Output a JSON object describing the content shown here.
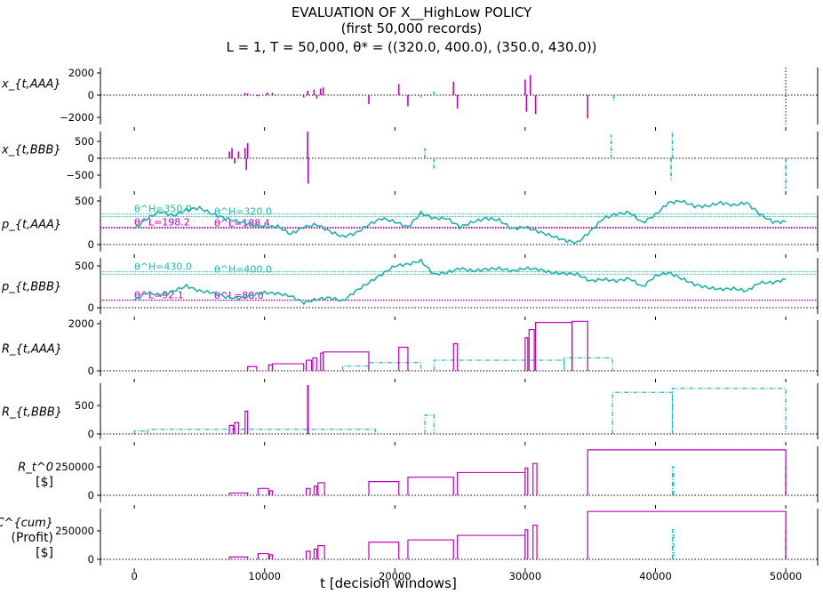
{
  "chart_data": {
    "type": "line",
    "title": [
      "EVALUATION OF X__HighLow POLICY",
      "(first 50,000 records)",
      "L = 1, T = 50,000, θ* = ((320.0, 400.0), (350.0, 430.0))"
    ],
    "xlabel": "t [decision windows]",
    "xlim": [
      -2600,
      52450
    ],
    "xticks": [
      0,
      10000,
      20000,
      30000,
      40000,
      50000
    ],
    "xtick_labels": [
      "0",
      "10000",
      "20000",
      "30000",
      "40000",
      "50000"
    ],
    "colors": {
      "magenta": "#c000c0",
      "cyan": "#20b8b0",
      "line": "#20b2aa"
    },
    "panels": [
      {
        "ylabel": "x_{t,AAA}",
        "ylim": [
          -2640,
          2480
        ],
        "yticks": [
          2000,
          0,
          -2000
        ],
        "ytick_labels": [
          "2000",
          "0",
          "−2000"
        ],
        "kind": "spikes",
        "magenta": [
          [
            8500,
            200
          ],
          [
            8700,
            150
          ],
          [
            9500,
            -100
          ],
          [
            10200,
            250
          ],
          [
            10600,
            200
          ],
          [
            13000,
            -200
          ],
          [
            13300,
            400
          ],
          [
            13800,
            500
          ],
          [
            14000,
            -300
          ],
          [
            14300,
            600
          ],
          [
            14500,
            700
          ],
          [
            18000,
            -800
          ],
          [
            20300,
            1000
          ],
          [
            21000,
            -1000
          ],
          [
            24500,
            1200
          ],
          [
            24800,
            -1200
          ],
          [
            30000,
            1400
          ],
          [
            30100,
            -1500
          ],
          [
            30400,
            1800
          ],
          [
            30800,
            -1700
          ],
          [
            34800,
            -2100
          ]
        ],
        "cyan": [
          [
            22000,
            -200
          ],
          [
            23000,
            400
          ],
          [
            36800,
            -600
          ]
        ]
      },
      {
        "ylabel": "x_{t,BBB}",
        "ylim": [
          -895,
          790
        ],
        "yticks": [
          500,
          0,
          -500
        ],
        "ytick_labels": [
          "500",
          "0",
          "−500"
        ],
        "kind": "spikes",
        "magenta": [
          [
            7300,
            200
          ],
          [
            7500,
            300
          ],
          [
            7700,
            -150
          ],
          [
            8000,
            200
          ],
          [
            8500,
            300
          ],
          [
            8600,
            -350
          ],
          [
            8700,
            450
          ],
          [
            13300,
            900
          ],
          [
            13350,
            -750
          ]
        ],
        "cyan": [
          [
            22300,
            300
          ],
          [
            23000,
            -300
          ],
          [
            36600,
            700
          ],
          [
            41200,
            -650
          ],
          [
            41300,
            800
          ],
          [
            50000,
            -900
          ]
        ]
      },
      {
        "ylabel": "p_{t,AAA}",
        "ylim": [
          -82,
          561
        ],
        "yticks": [
          500,
          0
        ],
        "ytick_labels": [
          "500",
          "0"
        ],
        "kind": "price",
        "values": [
          180,
          300,
          380,
          330,
          400,
          420,
          350,
          300,
          260,
          230,
          200,
          210,
          120,
          200,
          230,
          150,
          90,
          130,
          230,
          300,
          260,
          200,
          360,
          300,
          300,
          200,
          260,
          300,
          280,
          180,
          200,
          150,
          100,
          50,
          20,
          150,
          300,
          350,
          370,
          250,
          340,
          480,
          500,
          440,
          440,
          480,
          450,
          480,
          350,
          260,
          260
        ],
        "thresholds": [
          {
            "label": "θ^H=350.0",
            "value": 350,
            "color": "cyan"
          },
          {
            "label": "θ^H=320.0",
            "value": 320,
            "color": "cyan"
          },
          {
            "label": "θ^L=198.2",
            "value": 198,
            "color": "magenta"
          },
          {
            "label": "θ^L=188.4",
            "value": 188,
            "color": "magenta"
          }
        ]
      },
      {
        "ylabel": "p_{t,BBB}",
        "ylim": [
          -74,
          596
        ],
        "yticks": [
          500,
          0
        ],
        "ytick_labels": [
          "500",
          "0"
        ],
        "kind": "price",
        "values": [
          90,
          180,
          150,
          200,
          260,
          200,
          180,
          130,
          110,
          150,
          180,
          170,
          140,
          60,
          100,
          120,
          80,
          200,
          300,
          400,
          500,
          520,
          560,
          400,
          420,
          470,
          440,
          460,
          470,
          440,
          470,
          460,
          420,
          410,
          400,
          320,
          340,
          320,
          350,
          250,
          380,
          420,
          350,
          280,
          240,
          220,
          230,
          200,
          300,
          300,
          340
        ],
        "thresholds": [
          {
            "label": "θ^H=430.0",
            "value": 430,
            "color": "cyan"
          },
          {
            "label": "θ^H=400.0",
            "value": 400,
            "color": "cyan"
          },
          {
            "label": "θ^L=92.1",
            "value": 92,
            "color": "magenta"
          },
          {
            "label": "θ^L=88.0",
            "value": 88,
            "color": "magenta"
          }
        ]
      },
      {
        "ylabel": "R_{t,AAA}",
        "ylim": [
          -226,
          2150
        ],
        "yticks": [
          2000,
          0
        ],
        "ytick_labels": [
          "2000",
          "0"
        ],
        "kind": "pulses",
        "magenta": [
          [
            8700,
            9400,
            180
          ],
          [
            10300,
            10600,
            250
          ],
          [
            10600,
            13000,
            300
          ],
          [
            13200,
            13600,
            450
          ],
          [
            13700,
            14000,
            550
          ],
          [
            14300,
            14500,
            750
          ],
          [
            14500,
            18000,
            800
          ],
          [
            20300,
            21000,
            1000
          ],
          [
            24500,
            24800,
            1150
          ],
          [
            30000,
            30200,
            1400
          ],
          [
            30300,
            30700,
            1750
          ],
          [
            30800,
            33600,
            2050
          ],
          [
            33600,
            34800,
            2100
          ]
        ],
        "cyan": [
          [
            16000,
            18000,
            200
          ],
          [
            18000,
            22000,
            350
          ],
          [
            23000,
            33000,
            450
          ],
          [
            33000,
            36700,
            550
          ]
        ]
      },
      {
        "ylabel": "R_{t,BBB}",
        "ylim": [
          -94,
          890
        ],
        "yticks": [
          500,
          0
        ],
        "ytick_labels": [
          "500",
          "0"
        ],
        "kind": "pulses",
        "magenta": [
          [
            7300,
            7600,
            150
          ],
          [
            7700,
            8000,
            200
          ],
          [
            8500,
            8700,
            400
          ],
          [
            13300,
            13350,
            850
          ]
        ],
        "cyan": [
          [
            0,
            1000,
            50
          ],
          [
            1000,
            18500,
            80
          ],
          [
            22300,
            23000,
            330
          ],
          [
            36700,
            41300,
            730
          ],
          [
            41300,
            50000,
            800
          ]
        ]
      },
      {
        "ylabel": "R_t^0",
        "ylabel2": "[$]",
        "ylim": [
          -62500,
          430000
        ],
        "yticks": [
          250000,
          0
        ],
        "ytick_labels": [
          "250000",
          "0"
        ],
        "kind": "pulses",
        "magenta": [
          [
            7300,
            8700,
            20000
          ],
          [
            9500,
            10300,
            60000
          ],
          [
            10400,
            10600,
            40000
          ],
          [
            13200,
            13500,
            60000
          ],
          [
            13800,
            14000,
            80000
          ],
          [
            14100,
            14600,
            110000
          ],
          [
            18000,
            20300,
            120000
          ],
          [
            21000,
            24500,
            160000
          ],
          [
            24800,
            30000,
            200000
          ],
          [
            30000,
            30200,
            240000
          ],
          [
            30600,
            30900,
            280000
          ],
          [
            34800,
            50000,
            400000
          ]
        ],
        "cyan": [
          [
            41300,
            41400,
            250000
          ],
          [
            49980,
            50000,
            250000
          ]
        ]
      },
      {
        "ylabel": "C^{cum}",
        "ylabel2": "(Profit)",
        "ylabel3": "[$]",
        "ylim": [
          -55000,
          445000
        ],
        "yticks": [
          250000,
          0
        ],
        "ytick_labels": [
          "250000",
          "0"
        ],
        "kind": "pulses",
        "magenta": [
          [
            7300,
            8700,
            20000
          ],
          [
            9500,
            10300,
            50000
          ],
          [
            10400,
            10600,
            40000
          ],
          [
            13200,
            13500,
            70000
          ],
          [
            13800,
            14000,
            90000
          ],
          [
            14100,
            14600,
            120000
          ],
          [
            18000,
            20300,
            150000
          ],
          [
            21000,
            24500,
            170000
          ],
          [
            24800,
            30000,
            210000
          ],
          [
            30000,
            30200,
            260000
          ],
          [
            30600,
            30900,
            300000
          ],
          [
            34800,
            50000,
            420000
          ]
        ],
        "cyan": [
          [
            41300,
            41400,
            260000
          ],
          [
            49980,
            50000,
            250000
          ]
        ]
      }
    ]
  }
}
